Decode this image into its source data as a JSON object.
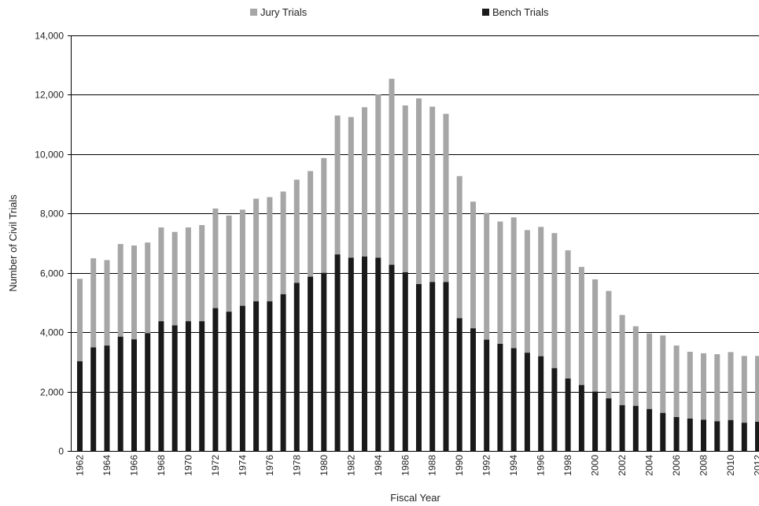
{
  "chart_data": {
    "type": "bar",
    "stacked": true,
    "xlabel": "Fiscal Year",
    "ylabel": "Number of Civil Trials",
    "ylim": [
      0,
      14000
    ],
    "y_ticks": [
      0,
      2000,
      4000,
      6000,
      8000,
      10000,
      12000,
      14000
    ],
    "y_tick_labels": [
      "0",
      "2,000",
      "4,000",
      "6,000",
      "8,000",
      "10,000",
      "12,000",
      "14,000"
    ],
    "grid": "horizontal",
    "legend_position": "top",
    "categories": [
      "1962",
      "1963",
      "1964",
      "1965",
      "1966",
      "1967",
      "1968",
      "1969",
      "1970",
      "1971",
      "1972",
      "1973",
      "1974",
      "1975",
      "1976",
      "1977",
      "1978",
      "1979",
      "1980",
      "1981",
      "1982",
      "1983",
      "1984",
      "1985",
      "1986",
      "1987",
      "1988",
      "1989",
      "1990",
      "1991",
      "1992",
      "1993",
      "1994",
      "1995",
      "1996",
      "1997",
      "1998",
      "1999",
      "2000",
      "2001",
      "2002",
      "2003",
      "2004",
      "2005",
      "2006",
      "2007",
      "2008",
      "2009",
      "2010",
      "2011",
      "2012"
    ],
    "x_tick_labels": [
      "1962",
      "",
      "1964",
      "",
      "1966",
      "",
      "1968",
      "",
      "1970",
      "",
      "1972",
      "",
      "1974",
      "",
      "1976",
      "",
      "1978",
      "",
      "1980",
      "",
      "1982",
      "",
      "1984",
      "",
      "1986",
      "",
      "1988",
      "",
      "1990",
      "",
      "1992",
      "",
      "1994",
      "",
      "1996",
      "",
      "1998",
      "",
      "2000",
      "",
      "2002",
      "",
      "2004",
      "",
      "2006",
      "",
      "2008",
      "",
      "2010",
      "",
      "2012"
    ],
    "series": [
      {
        "name": "Bench Trials",
        "color": "#1a1a1a",
        "values": [
          3020,
          3490,
          3550,
          3850,
          3760,
          3970,
          4370,
          4230,
          4370,
          4370,
          4810,
          4690,
          4890,
          5040,
          5040,
          5280,
          5660,
          5870,
          6000,
          6620,
          6510,
          6550,
          6510,
          6270,
          6020,
          5620,
          5690,
          5690,
          4470,
          4130,
          3750,
          3610,
          3460,
          3310,
          3190,
          2790,
          2440,
          2220,
          2000,
          1770,
          1540,
          1520,
          1410,
          1280,
          1140,
          1090,
          1050,
          1000,
          1040,
          950,
          980
        ]
      },
      {
        "name": "Jury Trials",
        "color": "#a6a6a6",
        "values": [
          2780,
          3000,
          2880,
          3120,
          3160,
          3050,
          3160,
          3150,
          3160,
          3240,
          3360,
          3240,
          3240,
          3460,
          3510,
          3460,
          3480,
          3560,
          3870,
          4680,
          4740,
          5030,
          5500,
          6270,
          5620,
          6260,
          5910,
          5670,
          4790,
          4270,
          4270,
          4120,
          4410,
          4130,
          4360,
          4550,
          4320,
          3980,
          3780,
          3620,
          3040,
          2680,
          2550,
          2610,
          2410,
          2250,
          2240,
          2260,
          2290,
          2250,
          2220
        ]
      }
    ]
  }
}
